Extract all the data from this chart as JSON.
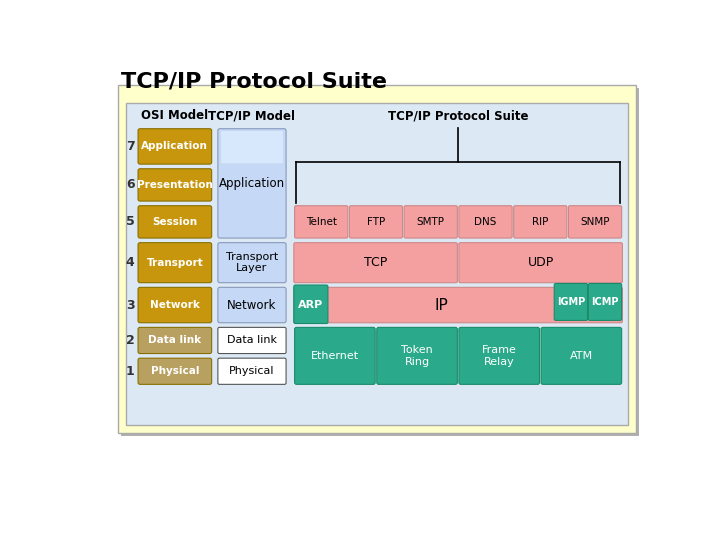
{
  "title": "TCP/IP Protocol Suite",
  "title_fontsize": 16,
  "title_fontweight": "bold",
  "bg_outer": "#ffffcc",
  "bg_inner": "#dce9f5",
  "osi_col_header": "OSI Model",
  "tcpip_col_header": "TCP/IP Model",
  "suite_col_header": "TCP/IP Protocol Suite",
  "osi_rows": [
    {
      "num": "7",
      "label": "Application"
    },
    {
      "num": "6",
      "label": "Presentation"
    },
    {
      "num": "5",
      "label": "Session"
    },
    {
      "num": "4",
      "label": "Transport"
    },
    {
      "num": "3",
      "label": "Network"
    },
    {
      "num": "2",
      "label": "Data link"
    },
    {
      "num": "1",
      "label": "Physical"
    }
  ],
  "osi_box_color": "#c8960c",
  "osi_box_color_faded": "#c8960c",
  "osi_faded_rows": [
    5,
    6
  ],
  "suite_app_protocols": [
    "Telnet",
    "FTP",
    "SMTP",
    "DNS",
    "RIP",
    "SNMP"
  ],
  "suite_app_color": "#f4a0a0",
  "teal_color": "#2aaa8a",
  "suite_datalink_protocols": [
    "Ethernet",
    "Token\nRing",
    "Frame\nRelay",
    "ATM"
  ]
}
